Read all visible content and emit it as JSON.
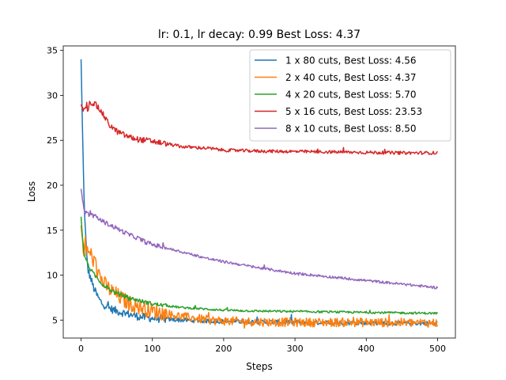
{
  "chart_data": {
    "type": "line",
    "title": "lr: 0.1, lr decay: 0.99 Best Loss: 4.37",
    "xlabel": "Steps",
    "ylabel": "Loss",
    "xlim": [
      -25,
      525
    ],
    "ylim": [
      3.0,
      35.5
    ],
    "xticks": [
      0,
      100,
      200,
      300,
      400,
      500
    ],
    "yticks": [
      5,
      10,
      15,
      20,
      25,
      30,
      35
    ],
    "grid": false,
    "legend_position": "top-right",
    "series": [
      {
        "name": "1 x 80 cuts, Best Loss: 4.56",
        "color": "#1f77b4",
        "points": [
          [
            0,
            34
          ],
          [
            2,
            26
          ],
          [
            4,
            19
          ],
          [
            6,
            15
          ],
          [
            8,
            12
          ],
          [
            10,
            10.5
          ],
          [
            14,
            9.5
          ],
          [
            18,
            8.5
          ],
          [
            22,
            7.8
          ],
          [
            26,
            7.2
          ],
          [
            30,
            6.8
          ],
          [
            35,
            6.6
          ],
          [
            40,
            6.3
          ],
          [
            50,
            6.0
          ],
          [
            60,
            5.8
          ],
          [
            70,
            5.6
          ],
          [
            80,
            5.4
          ],
          [
            90,
            5.3
          ],
          [
            100,
            5.2
          ],
          [
            120,
            5.1
          ],
          [
            140,
            5.0
          ],
          [
            160,
            4.95
          ],
          [
            180,
            4.9
          ],
          [
            200,
            4.85
          ],
          [
            250,
            4.8
          ],
          [
            300,
            4.75
          ],
          [
            350,
            4.7
          ],
          [
            400,
            4.7
          ],
          [
            450,
            4.65
          ],
          [
            500,
            4.65
          ]
        ],
        "noise": 0.25
      },
      {
        "name": "2 x 40 cuts, Best Loss: 4.37",
        "color": "#ff7f0e",
        "points": [
          [
            0,
            15.5
          ],
          [
            3,
            13
          ],
          [
            6,
            12.5
          ],
          [
            10,
            12.6
          ],
          [
            14,
            12.3
          ],
          [
            18,
            11.5
          ],
          [
            22,
            10.8
          ],
          [
            26,
            10.0
          ],
          [
            30,
            9.3
          ],
          [
            35,
            8.8
          ],
          [
            40,
            8.4
          ],
          [
            50,
            7.8
          ],
          [
            60,
            7.2
          ],
          [
            70,
            6.8
          ],
          [
            80,
            6.5
          ],
          [
            90,
            6.3
          ],
          [
            100,
            6.0
          ],
          [
            120,
            5.7
          ],
          [
            140,
            5.4
          ],
          [
            160,
            5.2
          ],
          [
            180,
            5.0
          ],
          [
            200,
            4.9
          ],
          [
            250,
            4.8
          ],
          [
            300,
            4.75
          ],
          [
            350,
            4.75
          ],
          [
            400,
            4.75
          ],
          [
            450,
            4.7
          ],
          [
            500,
            4.7
          ]
        ],
        "noise": 0.5
      },
      {
        "name": "4 x 20 cuts, Best Loss: 5.70",
        "color": "#2ca02c",
        "points": [
          [
            0,
            16.5
          ],
          [
            2,
            14
          ],
          [
            4,
            12.5
          ],
          [
            8,
            11.5
          ],
          [
            12,
            10.8
          ],
          [
            16,
            10.3
          ],
          [
            20,
            9.9
          ],
          [
            30,
            9.0
          ],
          [
            40,
            8.4
          ],
          [
            50,
            8.0
          ],
          [
            60,
            7.7
          ],
          [
            70,
            7.4
          ],
          [
            80,
            7.2
          ],
          [
            90,
            7.0
          ],
          [
            100,
            6.8
          ],
          [
            120,
            6.6
          ],
          [
            140,
            6.4
          ],
          [
            160,
            6.3
          ],
          [
            180,
            6.2
          ],
          [
            200,
            6.1
          ],
          [
            250,
            6.0
          ],
          [
            300,
            5.95
          ],
          [
            350,
            5.9
          ],
          [
            400,
            5.85
          ],
          [
            450,
            5.8
          ],
          [
            500,
            5.75
          ]
        ],
        "noise": 0.12
      },
      {
        "name": "5 x 16 cuts, Best Loss: 23.53",
        "color": "#d62728",
        "points": [
          [
            0,
            29
          ],
          [
            2,
            28.5
          ],
          [
            5,
            28.3
          ],
          [
            10,
            28.6
          ],
          [
            13,
            29.3
          ],
          [
            16,
            29.1
          ],
          [
            20,
            29.0
          ],
          [
            25,
            28.5
          ],
          [
            30,
            28.0
          ],
          [
            35,
            27.3
          ],
          [
            40,
            26.7
          ],
          [
            50,
            26.0
          ],
          [
            60,
            25.6
          ],
          [
            70,
            25.3
          ],
          [
            80,
            25.1
          ],
          [
            90,
            25.0
          ],
          [
            100,
            24.9
          ],
          [
            120,
            24.6
          ],
          [
            140,
            24.3
          ],
          [
            160,
            24.2
          ],
          [
            180,
            24.1
          ],
          [
            200,
            23.9
          ],
          [
            250,
            23.8
          ],
          [
            300,
            23.75
          ],
          [
            350,
            23.7
          ],
          [
            400,
            23.65
          ],
          [
            450,
            23.6
          ],
          [
            500,
            23.6
          ]
        ],
        "noise": 0.18
      },
      {
        "name": "8 x 10 cuts, Best Loss: 8.50",
        "color": "#9467bd",
        "points": [
          [
            0,
            19.6
          ],
          [
            2,
            18.5
          ],
          [
            4,
            17.5
          ],
          [
            6,
            17.0
          ],
          [
            10,
            16.8
          ],
          [
            20,
            16.5
          ],
          [
            30,
            16.0
          ],
          [
            40,
            15.6
          ],
          [
            50,
            15.2
          ],
          [
            60,
            14.8
          ],
          [
            70,
            14.4
          ],
          [
            80,
            14.1
          ],
          [
            90,
            13.7
          ],
          [
            100,
            13.4
          ],
          [
            120,
            13.0
          ],
          [
            140,
            12.6
          ],
          [
            160,
            12.2
          ],
          [
            180,
            11.8
          ],
          [
            200,
            11.5
          ],
          [
            250,
            10.8
          ],
          [
            300,
            10.2
          ],
          [
            350,
            9.8
          ],
          [
            400,
            9.4
          ],
          [
            450,
            9.0
          ],
          [
            500,
            8.6
          ]
        ],
        "noise": 0.14
      }
    ]
  }
}
